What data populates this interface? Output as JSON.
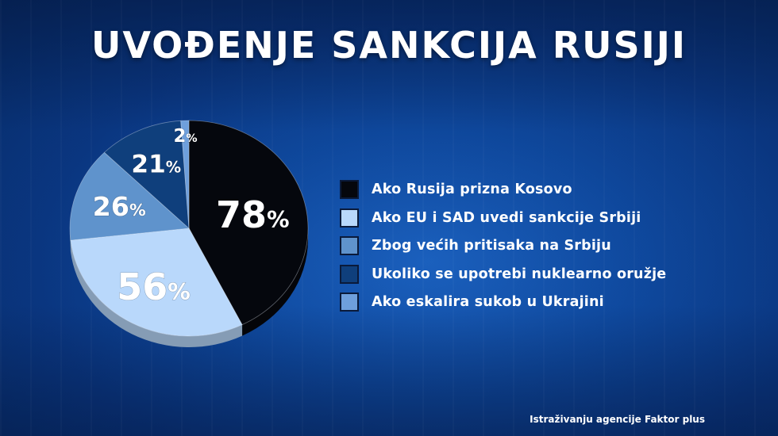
{
  "header": {
    "title": "UVOĐENJE SANKCIJA RUSIJI"
  },
  "chart_data": {
    "type": "pie",
    "title": "UVOĐENJE SANKCIJA RUSIJI",
    "legend_position": "right",
    "slices": [
      {
        "label": "Ako Rusija prizna Kosovo",
        "value": 78,
        "display": "78",
        "color": "#05070d"
      },
      {
        "label": "Ako EU i SAD uvedi sankcije Srbiji",
        "value": 56,
        "display": "56",
        "color": "#b9d8fb"
      },
      {
        "label": "Zbog većih pritisaka na Srbiju",
        "value": 26,
        "display": "26",
        "color": "#5f93cc"
      },
      {
        "label": "Ukoliko se upotrebi nuklearno oružje",
        "value": 21,
        "display": "21",
        "color": "#0f3f7c"
      },
      {
        "label": "Ako eskalira sukob u Ukrajini",
        "value": 2,
        "display": "2",
        "color": "#6e9fdc"
      }
    ]
  },
  "footer": {
    "source": "Istraživanju agencije Faktor plus"
  }
}
